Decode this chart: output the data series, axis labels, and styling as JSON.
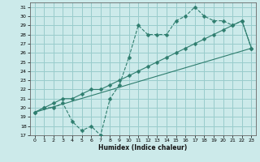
{
  "xlabel": "Humidex (Indice chaleur)",
  "bg_color": "#cceaea",
  "grid_color": "#99cccc",
  "line_color": "#2e7d6e",
  "xlim": [
    -0.5,
    23.5
  ],
  "ylim": [
    17,
    31.5
  ],
  "yticks": [
    17,
    18,
    19,
    20,
    21,
    22,
    23,
    24,
    25,
    26,
    27,
    28,
    29,
    30,
    31
  ],
  "xticks": [
    0,
    1,
    2,
    3,
    4,
    5,
    6,
    7,
    8,
    9,
    10,
    11,
    12,
    13,
    14,
    15,
    16,
    17,
    18,
    19,
    20,
    21,
    22,
    23
  ],
  "line1_x": [
    0,
    1,
    2,
    3,
    4,
    5,
    6,
    7,
    8,
    9,
    10,
    11,
    12,
    13,
    14,
    15,
    16,
    17,
    18,
    19,
    20,
    21,
    22,
    23
  ],
  "line1_y": [
    19.5,
    20.0,
    20.0,
    20.5,
    18.5,
    17.5,
    18.0,
    17.0,
    21.0,
    22.5,
    25.5,
    29.0,
    28.0,
    28.0,
    28.0,
    29.5,
    30.0,
    31.0,
    30.0,
    29.5,
    29.5,
    29.0,
    29.5,
    26.5
  ],
  "line2_x": [
    0,
    1,
    2,
    3,
    4,
    5,
    6,
    7,
    8,
    9,
    10,
    11,
    12,
    13,
    14,
    15,
    16,
    17,
    18,
    19,
    20,
    21,
    22,
    23
  ],
  "line2_y": [
    19.5,
    20.0,
    20.5,
    21.0,
    21.0,
    21.5,
    22.0,
    22.0,
    22.5,
    23.0,
    23.5,
    24.0,
    24.5,
    25.0,
    25.5,
    26.0,
    26.5,
    27.0,
    27.5,
    28.0,
    28.5,
    29.0,
    29.5,
    26.5
  ],
  "line3_x": [
    0,
    23
  ],
  "line3_y": [
    19.5,
    26.5
  ]
}
